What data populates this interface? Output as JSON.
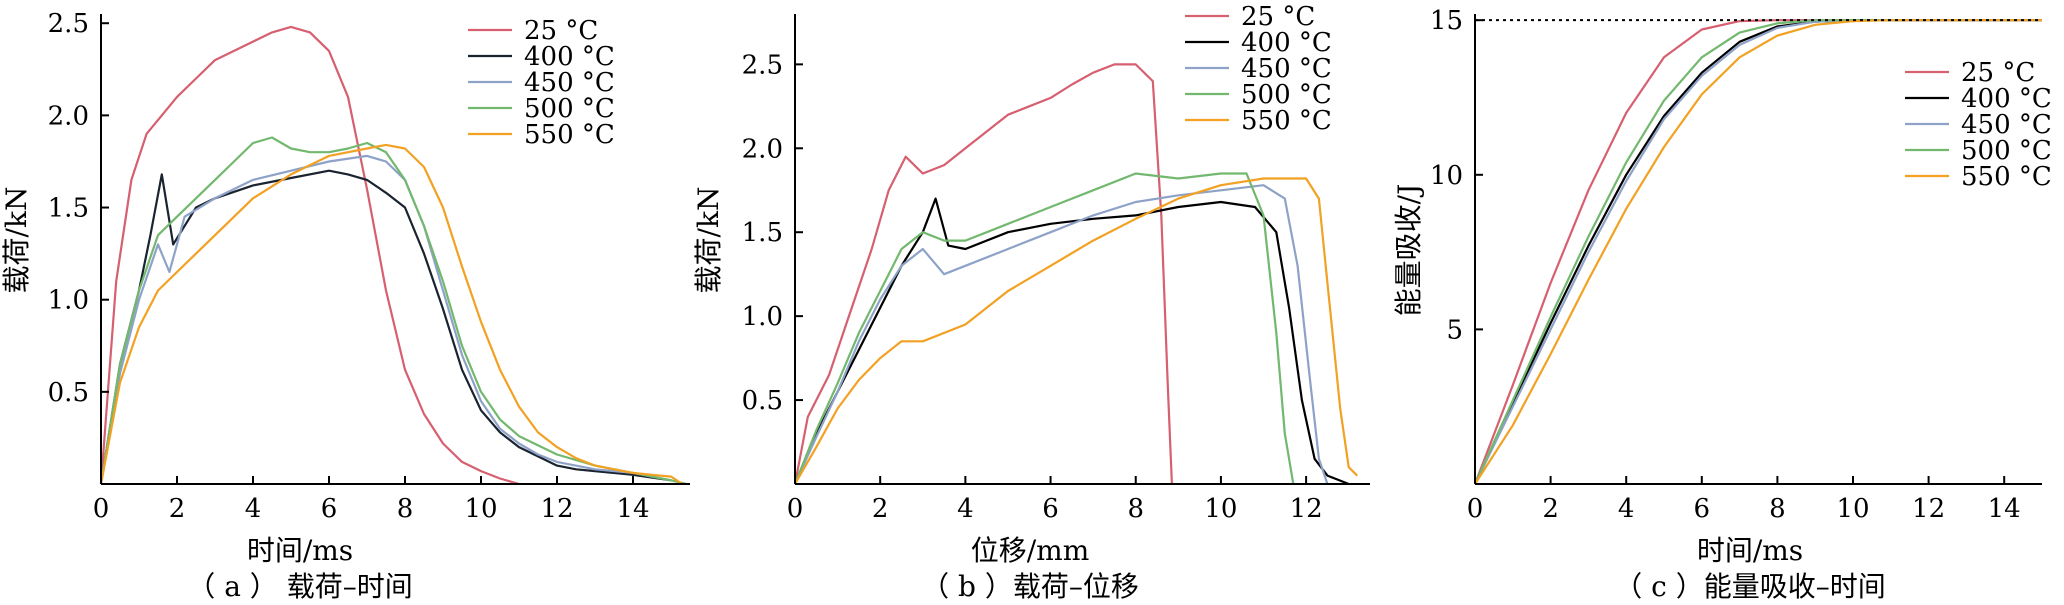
{
  "chart_data": [
    {
      "type": "line",
      "caption": "（ a ） 载荷–时间",
      "xlabel": "时间/ms",
      "ylabel": "载荷/kN",
      "xlim": [
        0,
        15.5
      ],
      "ylim": [
        0,
        2.55
      ],
      "xticks": [
        0,
        2,
        4,
        6,
        8,
        10,
        12,
        14
      ],
      "yticks": [
        0.5,
        1.0,
        1.5,
        2.0,
        2.5
      ],
      "ytick_labels": [
        "0.5",
        "1.0",
        "1.5",
        "2.0",
        "2.5"
      ],
      "legend_position": "top-right",
      "series": [
        {
          "name": "25 °C",
          "color": "#d65f70",
          "x": [
            0,
            0.4,
            0.8,
            1.2,
            1.6,
            2.0,
            2.5,
            3.0,
            3.5,
            4.0,
            4.5,
            5.0,
            5.5,
            6.0,
            6.5,
            7.0,
            7.5,
            8.0,
            8.5,
            9.0,
            9.5,
            10.0,
            10.5,
            11.0
          ],
          "y": [
            0,
            1.1,
            1.65,
            1.9,
            2.0,
            2.1,
            2.2,
            2.3,
            2.35,
            2.4,
            2.45,
            2.48,
            2.45,
            2.35,
            2.1,
            1.6,
            1.05,
            0.62,
            0.38,
            0.22,
            0.12,
            0.07,
            0.03,
            0.0
          ]
        },
        {
          "name": "400 °C",
          "color": "#1a2330",
          "x": [
            0,
            0.5,
            1.0,
            1.3,
            1.6,
            1.9,
            2.5,
            3.0,
            4.0,
            5.0,
            6.0,
            6.5,
            7.0,
            7.5,
            8.0,
            8.5,
            9.0,
            9.5,
            10.0,
            10.5,
            11.0,
            11.5,
            12.0,
            12.5,
            13.0,
            14.0,
            15.0
          ],
          "y": [
            0,
            0.65,
            1.05,
            1.35,
            1.68,
            1.3,
            1.5,
            1.55,
            1.62,
            1.66,
            1.7,
            1.68,
            1.65,
            1.58,
            1.5,
            1.25,
            0.95,
            0.62,
            0.4,
            0.28,
            0.2,
            0.15,
            0.1,
            0.08,
            0.07,
            0.05,
            0.02
          ]
        },
        {
          "name": "450 °C",
          "color": "#8ea2c8",
          "x": [
            0,
            0.5,
            1.0,
            1.5,
            1.8,
            2.2,
            3.0,
            4.0,
            5.0,
            6.0,
            7.0,
            7.5,
            8.0,
            8.5,
            9.0,
            9.5,
            10.0,
            10.5,
            11.0,
            11.5,
            12.0,
            13.0,
            14.0,
            15.0
          ],
          "y": [
            0,
            0.6,
            1.0,
            1.3,
            1.15,
            1.45,
            1.55,
            1.65,
            1.7,
            1.75,
            1.78,
            1.75,
            1.65,
            1.4,
            1.05,
            0.7,
            0.45,
            0.3,
            0.22,
            0.16,
            0.12,
            0.08,
            0.06,
            0.02
          ]
        },
        {
          "name": "500 °C",
          "color": "#72b86e",
          "x": [
            0,
            0.5,
            1.0,
            1.5,
            2.0,
            2.5,
            3.0,
            3.5,
            4.0,
            4.5,
            5.0,
            5.5,
            6.0,
            6.5,
            7.0,
            7.5,
            8.0,
            8.5,
            9.0,
            9.5,
            10.0,
            10.5,
            11.0,
            12.0,
            13.0,
            14.0,
            15.0,
            15.4
          ],
          "y": [
            0,
            0.65,
            1.05,
            1.35,
            1.45,
            1.55,
            1.65,
            1.75,
            1.85,
            1.88,
            1.82,
            1.8,
            1.8,
            1.82,
            1.85,
            1.8,
            1.65,
            1.4,
            1.1,
            0.75,
            0.5,
            0.35,
            0.26,
            0.16,
            0.1,
            0.06,
            0.02,
            0.0
          ]
        },
        {
          "name": "550 °C",
          "color": "#f2a122",
          "x": [
            0,
            0.5,
            1.0,
            1.5,
            2.0,
            3.0,
            4.0,
            5.0,
            6.0,
            7.0,
            7.5,
            8.0,
            8.5,
            9.0,
            9.5,
            10.0,
            10.5,
            11.0,
            11.5,
            12.0,
            12.5,
            13.0,
            13.5,
            14.0,
            14.5,
            15.0,
            15.3
          ],
          "y": [
            0,
            0.55,
            0.85,
            1.05,
            1.15,
            1.35,
            1.55,
            1.68,
            1.78,
            1.82,
            1.84,
            1.82,
            1.72,
            1.5,
            1.18,
            0.88,
            0.62,
            0.42,
            0.28,
            0.2,
            0.14,
            0.1,
            0.08,
            0.06,
            0.05,
            0.04,
            0.0
          ]
        }
      ]
    },
    {
      "type": "line",
      "caption": "（ b ）载荷–位移",
      "xlabel": "位移/mm",
      "ylabel": "载荷/kN",
      "xlim": [
        0,
        13.5
      ],
      "ylim": [
        0,
        2.8
      ],
      "xticks": [
        0,
        2,
        4,
        6,
        8,
        10,
        12
      ],
      "yticks": [
        0.5,
        1.0,
        1.5,
        2.0,
        2.5
      ],
      "ytick_labels": [
        "0.5",
        "1.0",
        "1.5",
        "2.0",
        "2.5"
      ],
      "legend_position": "top-right",
      "series": [
        {
          "name": "25 °C",
          "color": "#d65f70",
          "x": [
            0,
            0.3,
            0.8,
            1.2,
            1.8,
            2.2,
            2.6,
            3.0,
            3.5,
            4.0,
            4.5,
            5.0,
            5.5,
            6.0,
            6.5,
            7.0,
            7.5,
            8.0,
            8.4,
            8.6,
            8.75,
            8.85
          ],
          "y": [
            0,
            0.4,
            0.65,
            0.95,
            1.4,
            1.75,
            1.95,
            1.85,
            1.9,
            2.0,
            2.1,
            2.2,
            2.25,
            2.3,
            2.38,
            2.45,
            2.5,
            2.5,
            2.4,
            1.6,
            0.6,
            0.0
          ]
        },
        {
          "name": "400 °C",
          "color": "#000000",
          "x": [
            0,
            0.5,
            1.0,
            1.5,
            2.0,
            2.5,
            3.0,
            3.3,
            3.6,
            4.0,
            5.0,
            6.0,
            7.0,
            8.0,
            9.0,
            10.0,
            10.8,
            11.3,
            11.6,
            11.9,
            12.2,
            12.5,
            12.8,
            13.0
          ],
          "y": [
            0,
            0.3,
            0.55,
            0.8,
            1.05,
            1.3,
            1.5,
            1.7,
            1.42,
            1.4,
            1.5,
            1.55,
            1.58,
            1.6,
            1.65,
            1.68,
            1.65,
            1.5,
            1.05,
            0.5,
            0.15,
            0.05,
            0.02,
            0.0
          ]
        },
        {
          "name": "450 °C",
          "color": "#8ea2c8",
          "x": [
            0,
            0.5,
            1.0,
            1.5,
            2.0,
            2.5,
            3.0,
            3.5,
            4.0,
            5.0,
            6.0,
            7.0,
            8.0,
            9.0,
            10.0,
            11.0,
            11.5,
            11.8,
            12.1,
            12.3,
            12.5
          ],
          "y": [
            0,
            0.28,
            0.55,
            0.85,
            1.1,
            1.3,
            1.4,
            1.25,
            1.3,
            1.4,
            1.5,
            1.6,
            1.68,
            1.72,
            1.75,
            1.78,
            1.7,
            1.3,
            0.6,
            0.15,
            0.0
          ]
        },
        {
          "name": "500 °C",
          "color": "#72b86e",
          "x": [
            0,
            0.5,
            1.0,
            1.5,
            2.0,
            2.5,
            3.0,
            3.5,
            4.0,
            5.0,
            6.0,
            7.0,
            8.0,
            9.0,
            10.0,
            10.6,
            11.0,
            11.3,
            11.5,
            11.7
          ],
          "y": [
            0,
            0.32,
            0.6,
            0.9,
            1.15,
            1.4,
            1.5,
            1.45,
            1.45,
            1.55,
            1.65,
            1.75,
            1.85,
            1.82,
            1.85,
            1.85,
            1.6,
            0.9,
            0.3,
            0.0
          ]
        },
        {
          "name": "550 °C",
          "color": "#f2a122",
          "x": [
            0,
            0.5,
            1.0,
            1.5,
            2.0,
            2.5,
            3.0,
            4.0,
            5.0,
            6.0,
            7.0,
            8.0,
            9.0,
            10.0,
            11.0,
            12.0,
            12.3,
            12.5,
            12.8,
            13.0,
            13.2
          ],
          "y": [
            0,
            0.22,
            0.45,
            0.62,
            0.75,
            0.85,
            0.85,
            0.95,
            1.15,
            1.3,
            1.45,
            1.58,
            1.7,
            1.78,
            1.82,
            1.82,
            1.7,
            1.2,
            0.45,
            0.1,
            0.05
          ]
        }
      ]
    },
    {
      "type": "line",
      "caption": "（ c ）能量吸收–时间",
      "xlabel": "时间/ms",
      "ylabel": "能量吸收/J",
      "xlim": [
        0,
        15
      ],
      "ylim": [
        0,
        15.2
      ],
      "xticks": [
        0,
        2,
        4,
        6,
        8,
        10,
        12,
        14
      ],
      "yticks": [
        5,
        10,
        15
      ],
      "ytick_labels": [
        "5",
        "10",
        "15"
      ],
      "reference_line_y": 15,
      "legend_position": "top-right",
      "series": [
        {
          "name": "25 °C",
          "color": "#d65f70",
          "x": [
            0,
            1,
            2,
            3,
            4,
            5,
            6,
            7,
            8,
            10,
            15
          ],
          "y": [
            0,
            3.2,
            6.5,
            9.5,
            12.0,
            13.8,
            14.7,
            14.97,
            15.0,
            15.0,
            15.0
          ]
        },
        {
          "name": "400 °C",
          "color": "#000000",
          "x": [
            0,
            1,
            2,
            3,
            4,
            5,
            6,
            7,
            8,
            9,
            10,
            11,
            15
          ],
          "y": [
            0,
            2.6,
            5.2,
            7.7,
            10.0,
            11.9,
            13.3,
            14.3,
            14.8,
            14.95,
            15.0,
            15.0,
            15.0
          ]
        },
        {
          "name": "450 °C",
          "color": "#8ea2c8",
          "x": [
            0,
            1,
            2,
            3,
            4,
            5,
            6,
            7,
            8,
            9,
            10,
            11,
            15
          ],
          "y": [
            0,
            2.5,
            5.0,
            7.5,
            9.8,
            11.8,
            13.2,
            14.2,
            14.75,
            14.95,
            15.0,
            15.0,
            15.0
          ]
        },
        {
          "name": "500 °C",
          "color": "#72b86e",
          "x": [
            0,
            1,
            2,
            3,
            4,
            5,
            6,
            7,
            8,
            9,
            10,
            11,
            15
          ],
          "y": [
            0,
            2.7,
            5.4,
            8.0,
            10.4,
            12.4,
            13.8,
            14.6,
            14.9,
            15.0,
            15.0,
            15.0,
            15.0
          ]
        },
        {
          "name": "550 °C",
          "color": "#f2a122",
          "x": [
            0,
            1,
            2,
            3,
            4,
            5,
            6,
            7,
            8,
            9,
            10,
            11,
            12,
            15
          ],
          "y": [
            0,
            1.9,
            4.2,
            6.6,
            8.9,
            10.9,
            12.6,
            13.8,
            14.5,
            14.85,
            14.97,
            15.0,
            15.0,
            15.0
          ]
        }
      ]
    }
  ]
}
